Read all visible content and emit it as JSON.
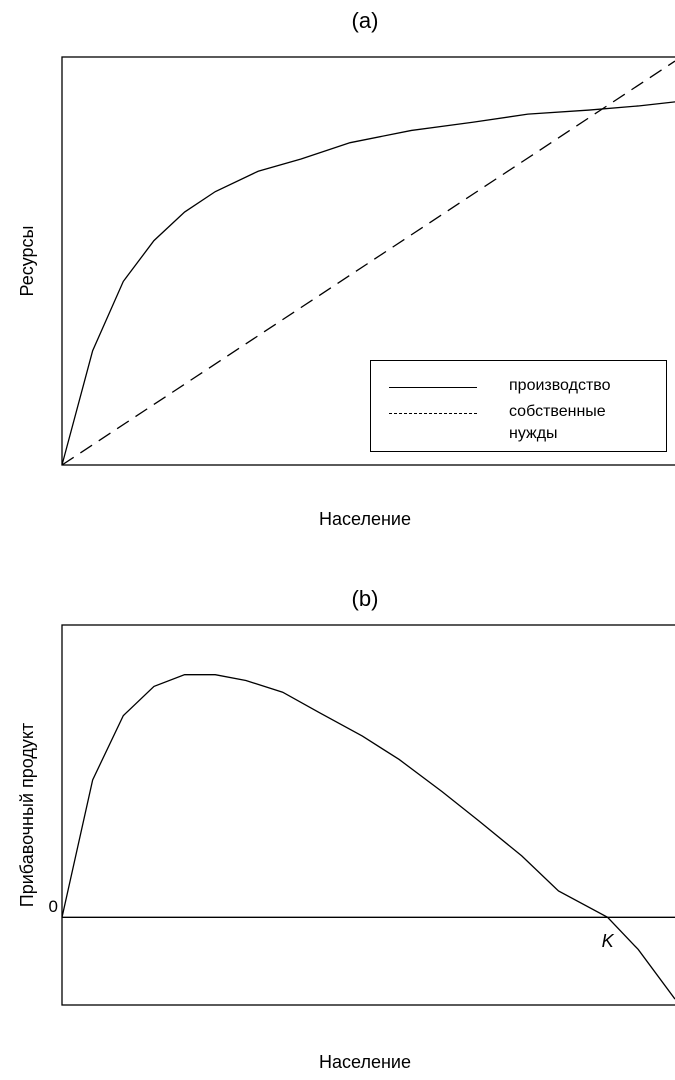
{
  "chart_data": [
    {
      "type": "line",
      "title": "(a)",
      "x_label": "Население",
      "y_label": "Ресурсы",
      "xlim": [
        0,
        100
      ],
      "ylim": [
        0,
        100
      ],
      "series": [
        {
          "name": "производство",
          "color": "#000000",
          "dash": false,
          "x": [
            0,
            5,
            10,
            15,
            20,
            25,
            32,
            39,
            47,
            57,
            67,
            76,
            86,
            94,
            100
          ],
          "values": [
            0,
            28,
            45,
            55,
            62,
            67,
            72,
            75,
            79,
            82,
            84,
            86,
            87,
            88,
            89
          ]
        },
        {
          "name": "собственные нужды",
          "color": "#000000",
          "dash": true,
          "x": [
            0,
            100
          ],
          "values": [
            0,
            99
          ]
        }
      ],
      "legend": "lower right"
    },
    {
      "type": "line",
      "title": "(b)",
      "x_label": "Население",
      "y_label": "Прибавочный продукт",
      "xlim": [
        0,
        100
      ],
      "ylim": [
        -30,
        100
      ],
      "yticks": [
        0
      ],
      "annotations": [
        {
          "text": "K",
          "x": 89
        }
      ],
      "series": [
        {
          "name": null,
          "color": "#000000",
          "dash": false,
          "x": [
            0,
            5,
            10,
            15,
            20,
            25,
            30,
            36,
            42,
            49,
            55,
            62,
            68,
            75,
            81,
            89,
            94,
            100
          ],
          "values": [
            0,
            47,
            69,
            79,
            83,
            83,
            81,
            77,
            70,
            62,
            54,
            43,
            33,
            21,
            9,
            0,
            -11,
            -28
          ]
        }
      ]
    }
  ]
}
